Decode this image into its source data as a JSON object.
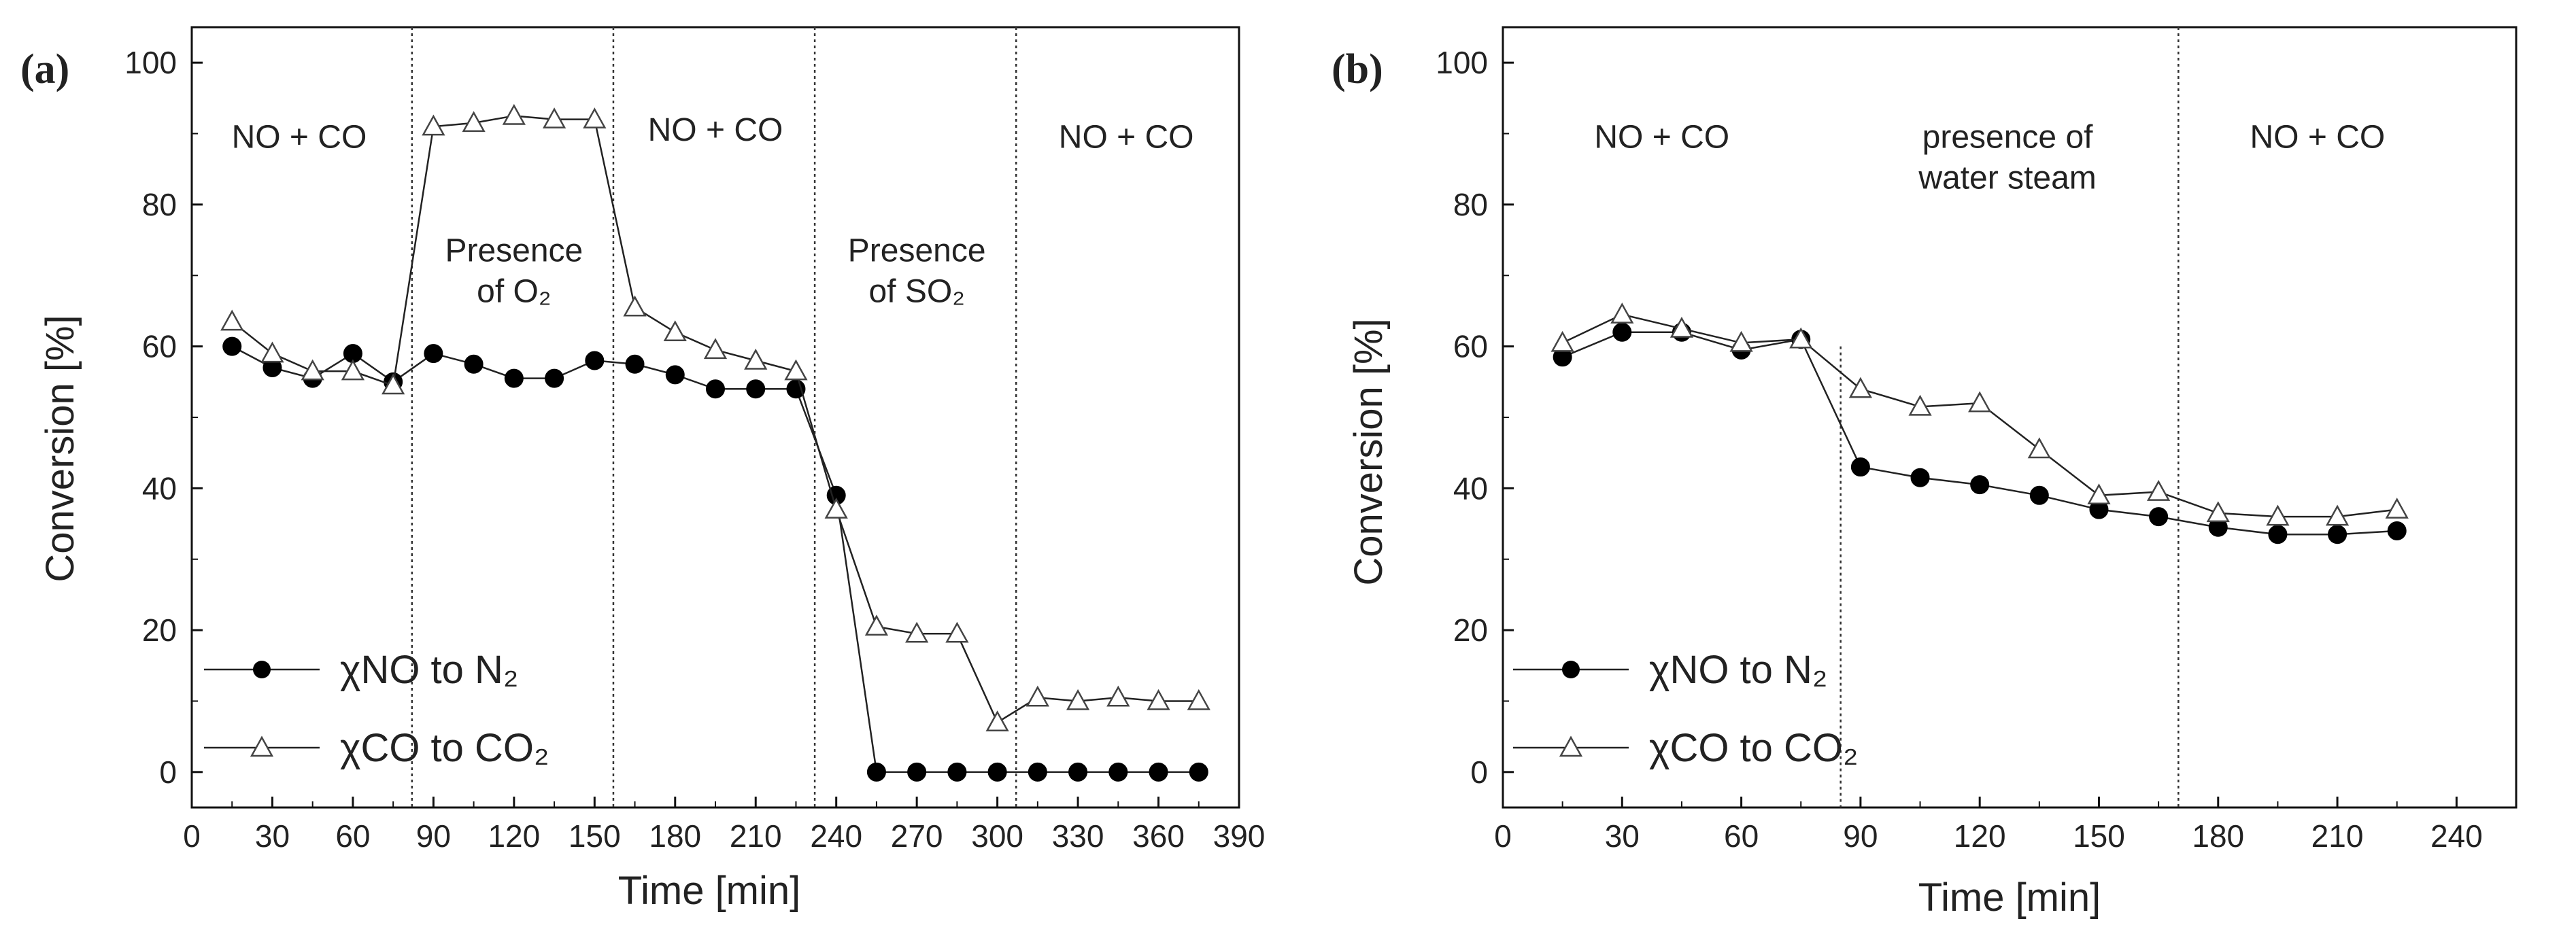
{
  "chart_data": [
    {
      "panel_label": "(a)",
      "type": "line",
      "xlabel": "Time [min]",
      "ylabel": "Conversion [%]",
      "xlim": [
        0,
        390
      ],
      "ylim": [
        -5,
        105
      ],
      "xticks": [
        0,
        30,
        60,
        90,
        120,
        150,
        180,
        210,
        240,
        270,
        300,
        330,
        360,
        390
      ],
      "yticks": [
        0,
        20,
        40,
        60,
        80,
        100
      ],
      "dividers": [
        82,
        157,
        232,
        307
      ],
      "regions": [
        {
          "lines": [
            "NO + CO"
          ],
          "x": 40,
          "y": 88
        },
        {
          "lines": [
            "Presence",
            "of O₂"
          ],
          "x": 120,
          "y": 72
        },
        {
          "lines": [
            "NO + CO"
          ],
          "x": 195,
          "y": 89
        },
        {
          "lines": [
            "Presence",
            "of SO₂"
          ],
          "x": 270,
          "y": 72
        },
        {
          "lines": [
            "NO + CO"
          ],
          "x": 348,
          "y": 88
        }
      ],
      "series": [
        {
          "name": "χNO to N₂",
          "marker": "filled-circle",
          "x": [
            15,
            30,
            45,
            60,
            75,
            90,
            105,
            120,
            135,
            150,
            165,
            180,
            195,
            210,
            225,
            240,
            255,
            270,
            285,
            300,
            315,
            330,
            345,
            360,
            375
          ],
          "y": [
            60,
            57,
            55.5,
            59,
            55,
            59,
            57.5,
            55.5,
            55.5,
            58,
            57.5,
            56,
            54,
            54,
            54,
            39,
            0,
            0,
            0,
            0,
            0,
            0,
            0,
            0,
            0
          ]
        },
        {
          "name": "χCO to CO₂",
          "marker": "open-triangle",
          "x": [
            15,
            30,
            45,
            60,
            75,
            90,
            105,
            120,
            135,
            150,
            165,
            180,
            195,
            210,
            225,
            240,
            255,
            270,
            285,
            300,
            315,
            330,
            345,
            360,
            375
          ],
          "y": [
            63.5,
            59,
            56.5,
            56.5,
            54.5,
            91,
            91.5,
            92.5,
            92,
            92,
            65.5,
            62,
            59.5,
            58,
            56.5,
            37,
            20.5,
            19.5,
            19.5,
            7,
            10.5,
            10,
            10.5,
            10,
            10
          ]
        }
      ],
      "legend": "bottom-left"
    },
    {
      "panel_label": "(b)",
      "type": "line",
      "xlabel": "Time [min]",
      "ylabel": "Conversion [%]",
      "xlim": [
        0,
        255
      ],
      "ylim": [
        -5,
        105
      ],
      "xticks": [
        0,
        30,
        60,
        90,
        120,
        150,
        180,
        210,
        240
      ],
      "yticks": [
        0,
        20,
        40,
        60,
        80,
        100
      ],
      "dividers": [
        85,
        170
      ],
      "regions": [
        {
          "lines": [
            "NO + CO"
          ],
          "x": 40,
          "y": 88
        },
        {
          "lines": [
            "presence of",
            "water steam"
          ],
          "x": 127,
          "y": 88
        },
        {
          "lines": [
            "NO + CO"
          ],
          "x": 205,
          "y": 88
        }
      ],
      "series": [
        {
          "name": "χNO to N₂",
          "marker": "filled-circle",
          "x": [
            15,
            30,
            45,
            60,
            75,
            90,
            105,
            120,
            135,
            150,
            165,
            180,
            195,
            210,
            225
          ],
          "y": [
            58.5,
            62,
            62,
            59.5,
            61,
            43,
            41.5,
            40.5,
            39,
            37,
            36,
            34.5,
            33.5,
            33.5,
            34
          ]
        },
        {
          "name": "χCO to CO₂",
          "marker": "open-triangle",
          "x": [
            15,
            30,
            45,
            60,
            75,
            90,
            105,
            120,
            135,
            150,
            165,
            180,
            195,
            210,
            225
          ],
          "y": [
            60.5,
            64.5,
            62.5,
            60.5,
            61,
            54,
            51.5,
            52,
            45.5,
            39,
            39.5,
            36.5,
            36,
            36,
            37
          ]
        }
      ],
      "legend": "bottom-left"
    }
  ]
}
